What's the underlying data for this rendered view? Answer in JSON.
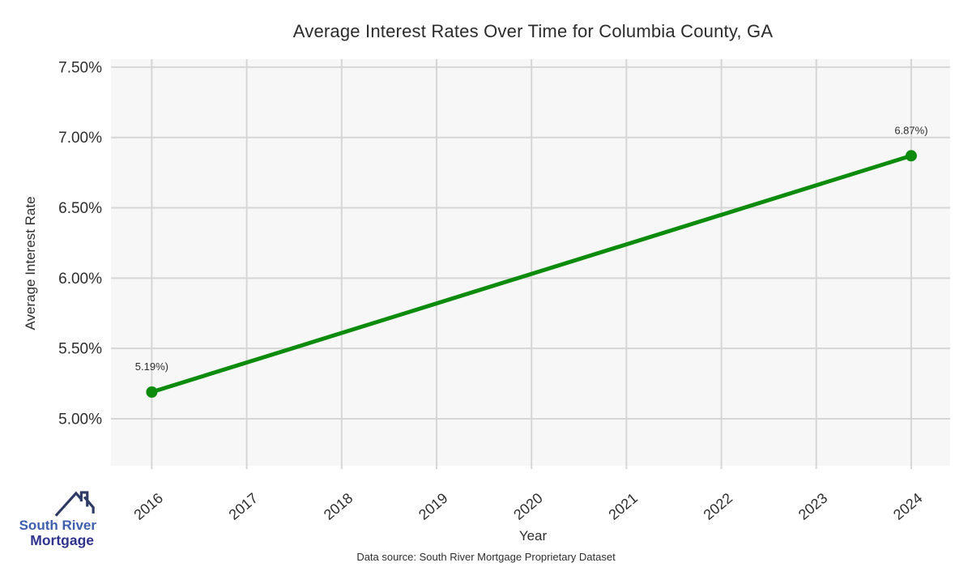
{
  "chart_data": {
    "type": "line",
    "title": "Average Interest Rates Over Time for Columbia County, GA",
    "xlabel": "Year",
    "ylabel": "Average Interest Rate",
    "x": [
      2016,
      2024
    ],
    "y": [
      5.19,
      6.87
    ],
    "point_labels": [
      "5.19%)",
      "6.87%)"
    ],
    "xticks": [
      2016,
      2017,
      2018,
      2019,
      2020,
      2021,
      2022,
      2023,
      2024
    ],
    "xtick_labels": [
      "2016",
      "2017",
      "2018",
      "2019",
      "2020",
      "2021",
      "2022",
      "2023",
      "2024"
    ],
    "yticks": [
      5.0,
      5.5,
      6.0,
      6.5,
      7.0,
      7.5
    ],
    "ytick_labels": [
      "5.00%",
      "5.50%",
      "6.00%",
      "6.50%",
      "7.00%",
      "7.50%"
    ],
    "xlim": [
      2015.57,
      2024.41
    ],
    "ylim": [
      4.666,
      7.557
    ],
    "grid": true,
    "legend_position": "none",
    "line_color": "#0c8b0c",
    "marker_color": "#0c8b0c",
    "panel_bg": "#f7f7f7",
    "grid_color": "#d6d6d6",
    "text_color": "#2e2e2e"
  },
  "footer": {
    "data_source": "Data source: South River Mortgage Proprietary Dataset"
  },
  "logo": {
    "line1": "South River",
    "line2": "Mortgage",
    "line1_color": "#3d5fad",
    "line2_color": "#30338d",
    "icon_color": "#2d3a66",
    "icon": "house-roof-icon"
  }
}
